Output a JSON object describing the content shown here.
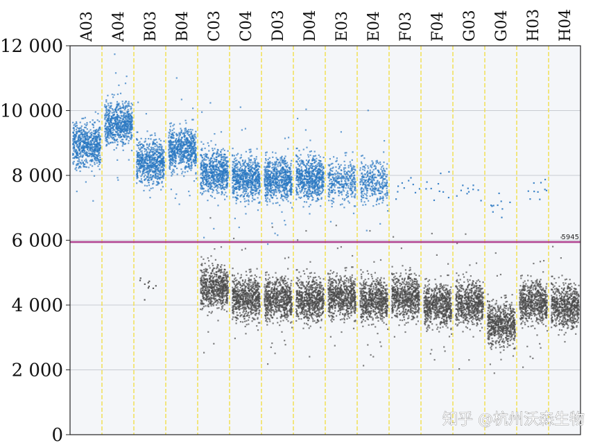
{
  "chart_data": {
    "type": "scatter",
    "title": "",
    "xlabel": "",
    "ylabel": "",
    "ylim": [
      0,
      12000
    ],
    "yticks": [
      0,
      2000,
      4000,
      6000,
      8000,
      10000,
      12000
    ],
    "ytick_labels": [
      "0",
      "2 000",
      "4 000",
      "6 000",
      "8 000",
      "10 000",
      "12 000"
    ],
    "wells": [
      "A03",
      "A04",
      "B03",
      "B04",
      "C03",
      "C04",
      "D03",
      "D04",
      "E03",
      "E04",
      "F03",
      "F04",
      "G03",
      "G04",
      "H03",
      "H04"
    ],
    "threshold": {
      "value": 5945,
      "label": "5945",
      "color": "#b0418f"
    },
    "positive_cluster_color": "#2a78c2",
    "negative_cluster_color": "#4a4a4a",
    "divider_color": "#f2dc3a",
    "series": [
      {
        "cluster": "positive",
        "median_amplitude": [
          8950,
          9650,
          8450,
          8850,
          8150,
          7950,
          7950,
          7950,
          7850,
          7850,
          7600,
          7700,
          7500,
          7200,
          7550,
          null
        ],
        "droplet_density": [
          "high",
          "high",
          "high",
          "high",
          "high",
          "high",
          "high",
          "high",
          "medium",
          "medium",
          "sparse",
          "sparse",
          "sparse",
          "sparse",
          "sparse",
          "none"
        ]
      },
      {
        "cluster": "negative",
        "median_amplitude": [
          null,
          null,
          4500,
          null,
          4600,
          4250,
          4250,
          4200,
          4300,
          4200,
          4300,
          4050,
          4100,
          3450,
          4150,
          4000
        ],
        "droplet_density": [
          "none",
          "none",
          "sparse",
          "none",
          "high",
          "high",
          "high",
          "high",
          "high",
          "high",
          "high",
          "high",
          "high",
          "high",
          "high",
          "high"
        ]
      }
    ]
  },
  "watermark": "知乎 @杭州沃森生物"
}
